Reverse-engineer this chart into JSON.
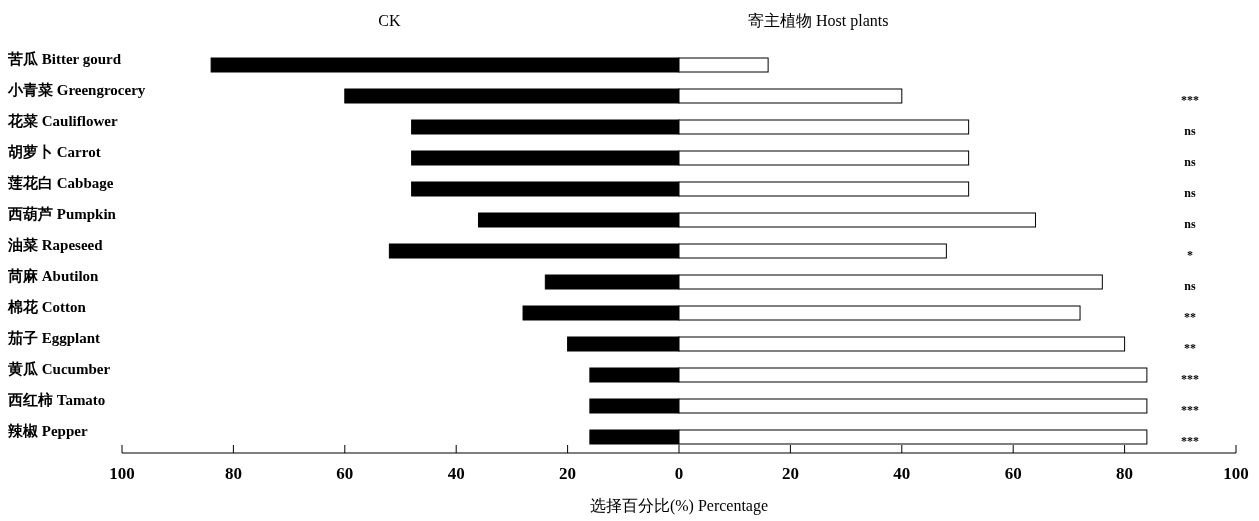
{
  "chart_data": {
    "type": "bar",
    "orientation": "horizontal",
    "stacked": true,
    "xlabel": "选择百分比(%) Percentage",
    "categories": [
      "苦瓜 Bitter gourd",
      "小青菜 Greengrocery",
      "花菜 Cauliflower",
      "胡萝卜 Carrot",
      "莲花白 Cabbage",
      "西葫芦 Pumpkin",
      "油菜 Rapeseed",
      "苘麻 Abutilon",
      "棉花 Cotton",
      "茄子 Eggplant",
      "黄瓜 Cucumber",
      "西红柿 Tamato",
      "辣椒 Pepper"
    ],
    "series": [
      {
        "name": "CK",
        "color": "#000000",
        "values": [
          -84,
          -60,
          -48,
          -48,
          -48,
          -36,
          -52,
          -24,
          -28,
          -20,
          -16,
          -16,
          -16
        ]
      },
      {
        "name": "寄主植物 Host plants",
        "color": "#ffffff",
        "values": [
          16,
          40,
          52,
          52,
          52,
          64,
          48,
          76,
          72,
          80,
          84,
          84,
          84
        ]
      }
    ],
    "xlim": [
      -100,
      100
    ],
    "xticks": [
      {
        "value": -100,
        "label": "100"
      },
      {
        "value": -80,
        "label": "80"
      },
      {
        "value": -60,
        "label": "60"
      },
      {
        "value": -40,
        "label": "40"
      },
      {
        "value": -20,
        "label": "20"
      },
      0,
      20,
      40,
      60,
      80,
      100
    ],
    "annotations": [
      "***",
      "ns",
      "ns",
      "ns",
      "ns",
      "*",
      "ns",
      "**",
      "**",
      "***",
      "***",
      "***"
    ]
  }
}
